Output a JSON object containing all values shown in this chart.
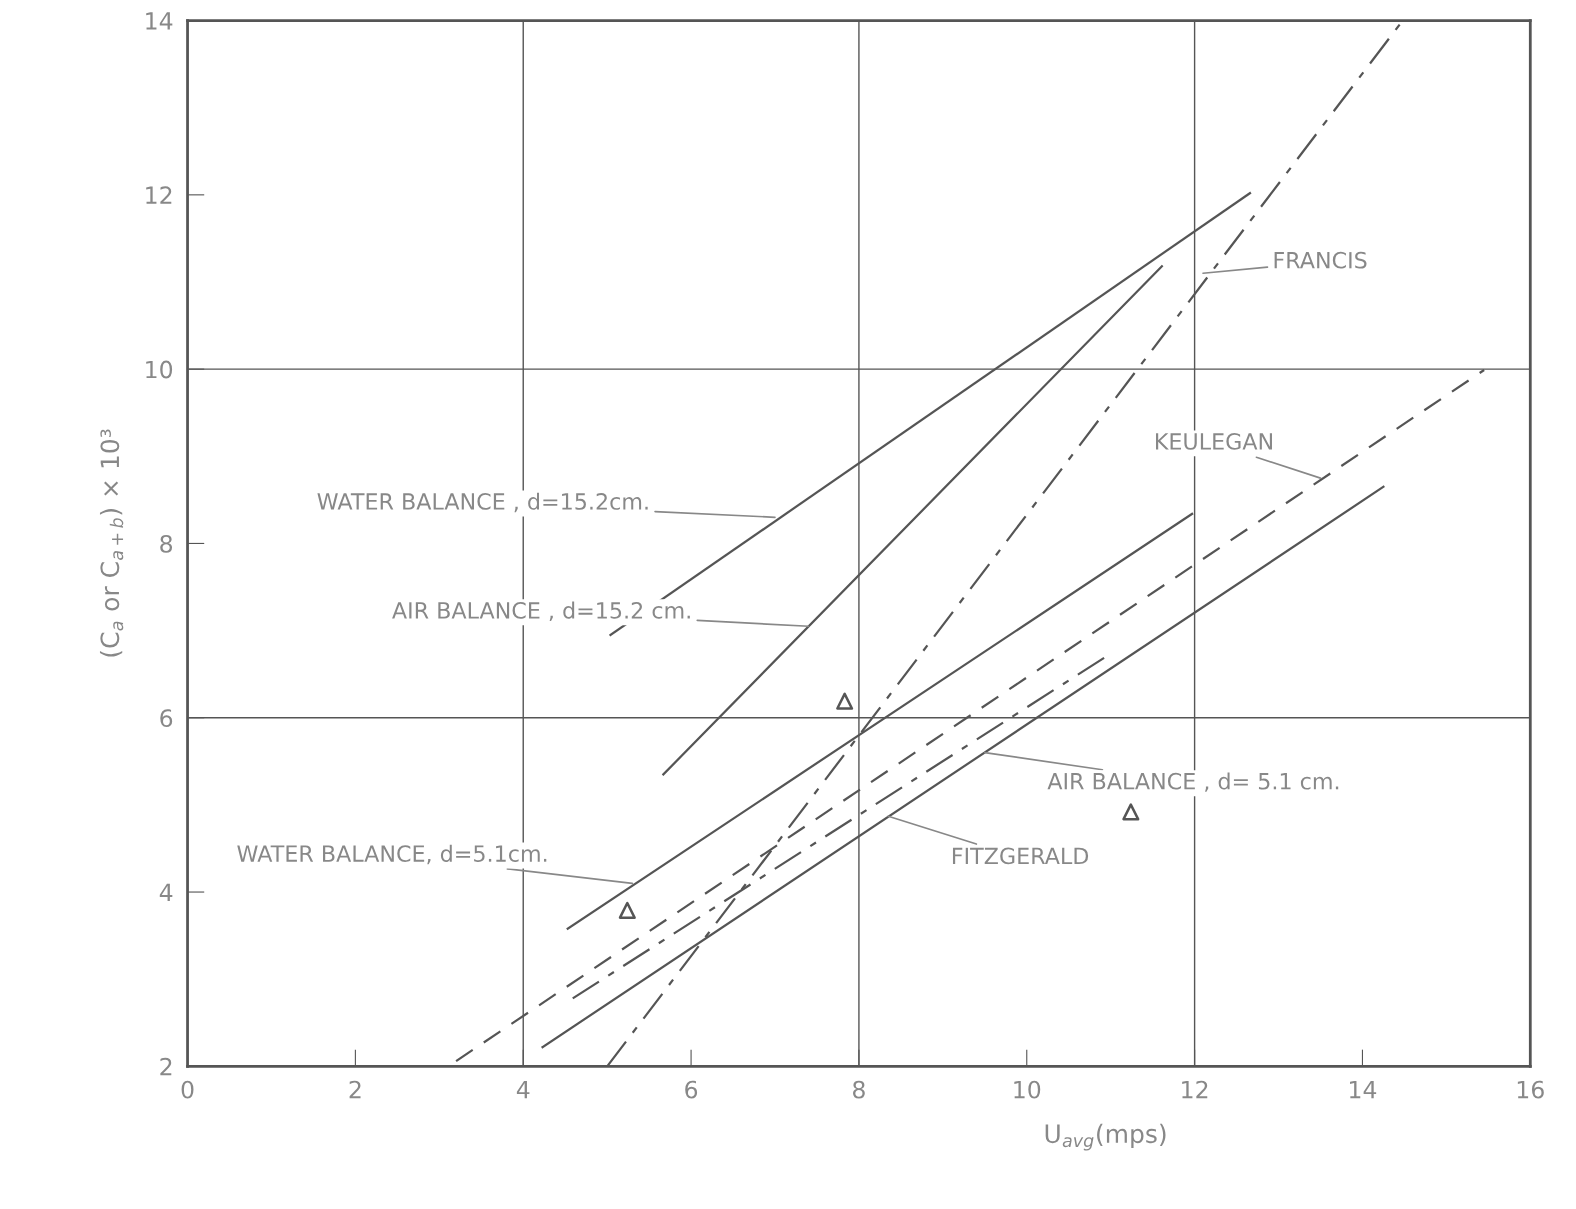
{
  "chart_data": {
    "type": "line",
    "xlabel": "U$_{avg}$(mps)",
    "ylabel": "(C$_{a}$ or C$_{a+b}$) × 10³",
    "xlim": [
      0,
      16
    ],
    "ylim": [
      2,
      14
    ],
    "xticks": [
      0,
      2,
      4,
      6,
      8,
      10,
      12,
      14,
      16
    ],
    "yticks": [
      2,
      4,
      6,
      8,
      10,
      12,
      14
    ],
    "grid": false,
    "legend": false,
    "marker": "none",
    "series": [
      {
        "color": "#555555",
        "line_style": "solid",
        "x": [
          5.04,
          12.66
        ],
        "values": [
          6.95,
          12.02
        ]
      },
      {
        "color": "#555555",
        "line_style": "solid",
        "x": [
          5.67,
          11.61
        ],
        "values": [
          5.35,
          11.18
        ]
      },
      {
        "color": "#555555",
        "line_style": "dashdot",
        "x": [
          5.0,
          14.48
        ],
        "values": [
          2.0,
          14.0
        ]
      },
      {
        "color": "#555555",
        "line_style": "dashed",
        "x": [
          3.2,
          15.45
        ],
        "values": [
          2.06,
          9.99
        ]
      },
      {
        "color": "#555555",
        "line_style": "solid",
        "x": [
          4.53,
          11.97
        ],
        "values": [
          3.58,
          8.34
        ]
      },
      {
        "color": "#555555",
        "line_style": "dashdot",
        "x": [
          4.59,
          10.99
        ],
        "values": [
          2.78,
          6.73
        ]
      },
      {
        "color": "#555555",
        "line_style": "solid",
        "x": [
          4.23,
          14.25
        ],
        "values": [
          2.22,
          8.65
        ]
      },
      {
        "type": "scatter",
        "color": "#555555",
        "marker": "triangle",
        "x": [
          5.24,
          7.83,
          11.24
        ],
        "values": [
          3.79,
          6.19,
          4.92
        ]
      }
    ],
    "ref_lines": [
      {
        "axis": "x",
        "value": 4
      },
      {
        "axis": "x",
        "value": 8
      },
      {
        "axis": "x",
        "value": 12
      },
      {
        "axis": "y",
        "value": 6
      },
      {
        "axis": "y",
        "value": 10
      }
    ],
    "annotations": [
      {
        "text": "WATER BALANCE , d=15.2cm.",
        "x": 7.0,
        "y": 8.3
      },
      {
        "text": "AIR BALANCE , d=15.2 cm.",
        "x": 7.4,
        "y": 7.05
      },
      {
        "text": "FRANCIS",
        "x": 12.1,
        "y": 11.1
      },
      {
        "text": "KEULEGAN",
        "x": 13.5,
        "y": 8.75
      },
      {
        "text": "WATER BALANCE, d=5.1cm.",
        "x": 5.3,
        "y": 4.1
      },
      {
        "text": "AIR BALANCE , d= 5.1 cm.",
        "x": 9.5,
        "y": 5.6
      },
      {
        "text": "FITZGERALD",
        "x": 8.35,
        "y": 4.87
      }
    ]
  }
}
